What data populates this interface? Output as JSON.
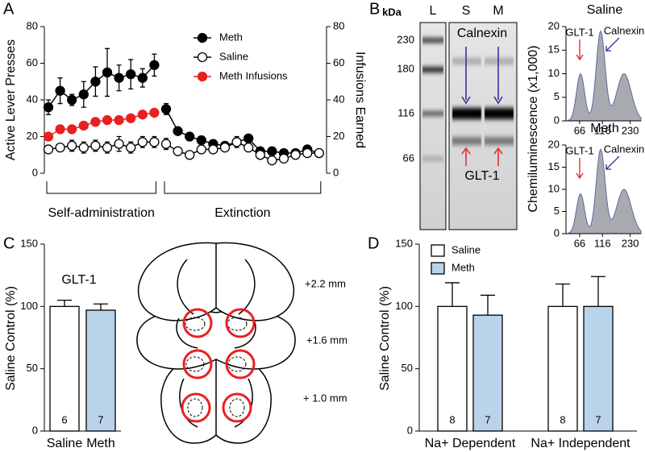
{
  "chart_data": [
    {
      "type": "line",
      "label": "A",
      "ylabel": "Active Lever Presses",
      "y2label": "Infusions Earned",
      "ylim": [
        0,
        80
      ],
      "yticks": [
        0,
        20,
        40,
        60,
        80
      ],
      "y2lim": [
        0,
        80
      ],
      "y2ticks": [
        0,
        20,
        40,
        60,
        80
      ],
      "phases": [
        {
          "name": "Self-administration",
          "sessions": 10
        },
        {
          "name": "Extinction",
          "sessions": 14
        }
      ],
      "series": [
        {
          "name": "Meth",
          "color": "#000000",
          "values": [
            36,
            45,
            40,
            43,
            50,
            55,
            52,
            54,
            52,
            59,
            35,
            23,
            20,
            18,
            16,
            15,
            17,
            19,
            12,
            12,
            11,
            11,
            13,
            11
          ],
          "errors": [
            4,
            7,
            3,
            7,
            8,
            13,
            7,
            8,
            5,
            6,
            3,
            2,
            2,
            2,
            2,
            2,
            2,
            2,
            2,
            2,
            2,
            2,
            2,
            2
          ]
        },
        {
          "name": "Saline",
          "color": "#ffffff",
          "values": [
            13,
            14,
            15,
            14,
            15,
            14,
            16,
            14,
            17,
            17,
            16,
            12,
            10,
            13,
            13,
            14,
            17,
            14,
            10,
            7,
            8,
            10,
            11,
            11
          ],
          "errors": [
            2,
            2,
            3,
            3,
            3,
            3,
            4,
            3,
            3,
            3,
            3,
            2,
            2,
            2,
            2,
            2,
            3,
            2,
            2,
            2,
            2,
            2,
            2,
            2
          ]
        },
        {
          "name": "Meth Infusions",
          "color": "#e8211f",
          "axis": "y2",
          "values": [
            20,
            24,
            24,
            26,
            28,
            29,
            29,
            30,
            32,
            33,
            null,
            null,
            null,
            null,
            null,
            null,
            null,
            null,
            null,
            null,
            null,
            null,
            null,
            null
          ]
        }
      ]
    },
    {
      "type": "blot",
      "label": "B",
      "unit_label": "kDa",
      "lanes": [
        "L",
        "S",
        "M"
      ],
      "markers": [
        230,
        180,
        116,
        66
      ],
      "annotations": [
        "Calnexin",
        "GLT-1"
      ],
      "ylabel": "Chemiluminescence (x1,000)",
      "traces": [
        {
          "title": "Saline"
        },
        {
          "title": "Meth"
        }
      ],
      "trace_labels": [
        "GLT-1",
        "Calnexin"
      ],
      "ylim": [
        0,
        20
      ],
      "yticks": [
        0,
        5,
        10,
        15,
        20
      ],
      "xlim": [
        50,
        300
      ],
      "xticks": [
        66,
        116,
        230
      ],
      "xlog": true
    },
    {
      "type": "bar",
      "label": "C",
      "title": "GLT-1",
      "ylabel": "Saline Control (%)",
      "categories": [
        "Saline",
        "Meth"
      ],
      "values": [
        100,
        97
      ],
      "errors": [
        5,
        5
      ],
      "n": [
        6,
        7
      ],
      "colors": [
        "#ffffff",
        "#b9d3ea"
      ],
      "ylim": [
        0,
        150
      ],
      "yticks": [
        0,
        50,
        100,
        150
      ],
      "sections": [
        "+2.2 mm",
        "+1.6 mm",
        "+ 1.0 mm"
      ]
    },
    {
      "type": "grouped_bar",
      "label": "D",
      "ylabel": "Saline Control (%)",
      "categories": [
        "Na+ Dependent",
        "Na+ Independent"
      ],
      "series": [
        {
          "name": "Saline",
          "color": "#ffffff",
          "values": [
            100,
            100
          ],
          "errors": [
            19,
            18
          ],
          "n": [
            8,
            8
          ]
        },
        {
          "name": "Meth",
          "color": "#b9d3ea",
          "values": [
            93,
            100
          ],
          "errors": [
            16,
            24
          ],
          "n": [
            7,
            7
          ]
        }
      ],
      "ylim": [
        0,
        150
      ],
      "yticks": [
        0,
        50,
        100,
        150
      ]
    }
  ]
}
